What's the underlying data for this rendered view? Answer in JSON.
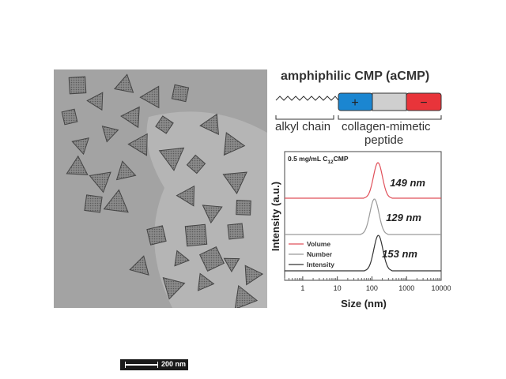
{
  "tem_image": {
    "scale_bar_label": "200 nm"
  },
  "schematic": {
    "title": "amphiphilic CMP (aCMP)",
    "alkyl_label": "alkyl chain",
    "peptide_label_line1": "collagen-mimetic",
    "peptide_label_line2": "peptide",
    "positive_symbol": "+",
    "negative_symbol": "−",
    "colors": {
      "positive": "#1b86d1",
      "neutral": "#cfcfcf",
      "negative": "#e8343a"
    }
  },
  "chart_data": {
    "type": "line",
    "annotation": "0.5 mg/mL C12CMP",
    "annotation_parts": {
      "pre": "0.5 mg/mL C",
      "sub": "12",
      "post": "CMP"
    },
    "xlabel": "Size (nm)",
    "ylabel": "Intensity (a.u.)",
    "xscale": "log",
    "xlim": [
      0.3,
      10000
    ],
    "xticks": [
      "1",
      "10",
      "100",
      "1000",
      "10000"
    ],
    "legend_placement": "bottom-left",
    "series": [
      {
        "name": "Volume",
        "color": "#e0505a",
        "peak_nm": 149,
        "peak_label": "149 nm"
      },
      {
        "name": "Number",
        "color": "#9a9a9a",
        "peak_nm": 129,
        "peak_label": "129 nm"
      },
      {
        "name": "Intensity",
        "color": "#333333",
        "peak_nm": 153,
        "peak_label": "153 nm"
      }
    ]
  }
}
